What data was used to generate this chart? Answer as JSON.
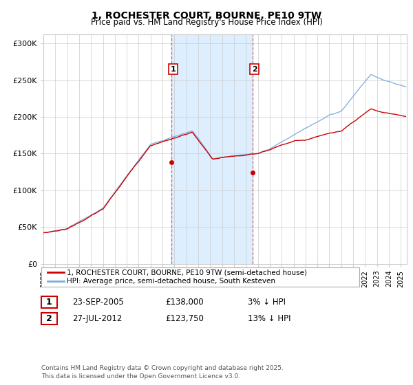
{
  "title": "1, ROCHESTER COURT, BOURNE, PE10 9TW",
  "subtitle": "Price paid vs. HM Land Registry's House Price Index (HPI)",
  "ylabel_ticks": [
    "£0",
    "£50K",
    "£100K",
    "£150K",
    "£200K",
    "£250K",
    "£300K"
  ],
  "ytick_values": [
    0,
    50000,
    100000,
    150000,
    200000,
    250000,
    300000
  ],
  "ylim": [
    0,
    312000
  ],
  "xlim_start": 1995.0,
  "xlim_end": 2025.5,
  "line1_color": "#cc0000",
  "line2_color": "#7aabdb",
  "shade_color": "#ddeeff",
  "marker1_x": 2005.73,
  "marker1_y": 138000,
  "marker2_x": 2012.57,
  "marker2_y": 123750,
  "annotation1": "1",
  "annotation2": "2",
  "legend_line1": "1, ROCHESTER COURT, BOURNE, PE10 9TW (semi-detached house)",
  "legend_line2": "HPI: Average price, semi-detached house, South Kesteven",
  "table_row1": [
    "1",
    "23-SEP-2005",
    "£138,000",
    "3% ↓ HPI"
  ],
  "table_row2": [
    "2",
    "27-JUL-2012",
    "£123,750",
    "13% ↓ HPI"
  ],
  "footer": "Contains HM Land Registry data © Crown copyright and database right 2025.\nThis data is licensed under the Open Government Licence v3.0.",
  "background_color": "#ffffff",
  "grid_color": "#cccccc"
}
